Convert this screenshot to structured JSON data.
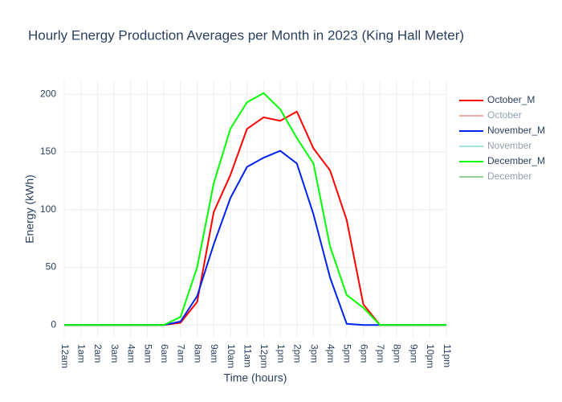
{
  "chart_data": {
    "type": "line",
    "title": "Hourly Energy Production Averages per Month in 2023 (King Hall Meter)",
    "x_label": "Time (hours)",
    "y_label": "Energy (kWh)",
    "categories": [
      "12am",
      "1am",
      "2am",
      "3am",
      "4am",
      "5am",
      "6am",
      "7am",
      "8am",
      "9am",
      "10am",
      "11am",
      "12pm",
      "1pm",
      "2pm",
      "3pm",
      "4pm",
      "5pm",
      "6pm",
      "7pm",
      "8pm",
      "9pm",
      "10pm",
      "11pm"
    ],
    "series": [
      {
        "name": "October_M",
        "color": "#ff0000",
        "values": [
          0,
          0,
          0,
          0,
          0,
          0,
          0,
          2,
          20,
          98,
          130,
          170,
          180,
          177,
          185,
          153,
          134,
          91,
          18,
          0,
          0,
          0,
          0,
          0
        ]
      },
      {
        "name": "October",
        "color": "#e8604c",
        "visible": false,
        "values": [
          null,
          null,
          null,
          null,
          null,
          null,
          null,
          null,
          null,
          null,
          null,
          null,
          null,
          null,
          null,
          null,
          null,
          null,
          null,
          null,
          null,
          null,
          null,
          null
        ]
      },
      {
        "name": "November_M",
        "color": "#0022ee",
        "values": [
          0,
          0,
          0,
          0,
          0,
          0,
          0,
          3,
          25,
          70,
          110,
          137,
          145,
          151,
          140,
          96,
          41,
          1,
          0,
          0,
          0,
          0,
          0,
          0
        ]
      },
      {
        "name": "November",
        "color": "#40c8c8",
        "visible": false,
        "values": [
          null,
          null,
          null,
          null,
          null,
          null,
          null,
          null,
          null,
          null,
          null,
          null,
          null,
          null,
          null,
          null,
          null,
          null,
          null,
          null,
          null,
          null,
          null,
          null
        ]
      },
      {
        "name": "December_M",
        "color": "#00ff00",
        "values": [
          0,
          0,
          0,
          0,
          0,
          0,
          0,
          7,
          50,
          123,
          170,
          193,
          201,
          187,
          162,
          140,
          68,
          26,
          15,
          0,
          0,
          0,
          0,
          0
        ]
      },
      {
        "name": "December",
        "color": "#2ca02c",
        "visible": false,
        "values": [
          null,
          null,
          null,
          null,
          null,
          null,
          null,
          null,
          null,
          null,
          null,
          null,
          null,
          null,
          null,
          null,
          null,
          null,
          null,
          null,
          null,
          null,
          null,
          null
        ]
      }
    ],
    "ylim": [
      -11,
      212
    ],
    "yticks": [
      0,
      50,
      100,
      150,
      200
    ],
    "grid": true,
    "legend": "right"
  }
}
